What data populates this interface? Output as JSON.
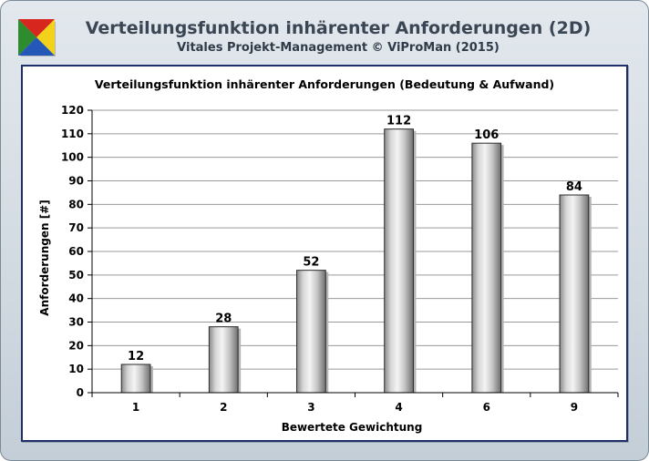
{
  "header": {
    "title": "Verteilungsfunktion inhärenter Anforderungen (2D)",
    "subtitle": "Vitales Projekt-Management  © ViProMan  (2015)"
  },
  "colors": {
    "logo_top": "#d7261e",
    "logo_left": "#2e8b2e",
    "logo_right": "#f2d21b",
    "logo_bottom": "#2457b8",
    "panel_border": "#1f2f6a",
    "gridline": "#9a9a9a",
    "bar_edge": "#2a2a2a"
  },
  "chart_data": {
    "type": "bar",
    "title": "Verteilungsfunktion inhärenter Anforderungen (Bedeutung & Aufwand)",
    "xlabel": "Bewertete Gewichtung",
    "ylabel": "Anforderungen [#]",
    "categories": [
      "1",
      "2",
      "3",
      "4",
      "6",
      "9"
    ],
    "values": [
      12,
      28,
      52,
      112,
      106,
      84
    ],
    "ylim": [
      0,
      120
    ],
    "ytick_step": 10,
    "grid": true,
    "legend": "none"
  }
}
